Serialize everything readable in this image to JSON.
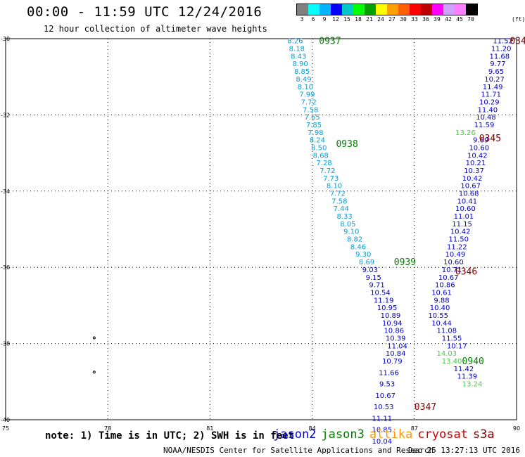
{
  "header": {
    "title": "00:00 - 11:59 UTC 12/24/2016",
    "subtitle": "12 hour collection of altimeter wave heights"
  },
  "colorbar": {
    "colors": [
      "#808080",
      "#00ffff",
      "#00b4ff",
      "#0000ff",
      "#00c8c8",
      "#00ff00",
      "#00a000",
      "#ffff00",
      "#ffa000",
      "#ff6000",
      "#ff0000",
      "#c00000",
      "#ff00ff",
      "#d0a0ff",
      "#ff80ff",
      "#000000"
    ],
    "labels": [
      "3",
      "6",
      "9",
      "12",
      "15",
      "18",
      "21",
      "24",
      "27",
      "30",
      "33",
      "36",
      "39",
      "42",
      "45",
      "70"
    ],
    "unit": "(ft)"
  },
  "axes": {
    "x_ticks": [
      "75",
      "78",
      "81",
      "84",
      "87",
      "90"
    ],
    "y_ticks": [
      "-30",
      "-32",
      "-34",
      "-36",
      "-38",
      "-40"
    ]
  },
  "satellites": [
    {
      "name": "jason2",
      "color": "#0000c8"
    },
    {
      "name": "jason3",
      "color": "#008000"
    },
    {
      "name": "altika",
      "color": "#ff9900"
    },
    {
      "name": "cryosat",
      "color": "#c80000"
    },
    {
      "name": "s3a",
      "color": "#800000"
    }
  ],
  "footer": {
    "note": "note: 1) Time is in UTC; 2) SWH is in feet",
    "credit": "NOAA/NESDIS Center for Satellite Applications and Research",
    "timestamp": "Dec 25 13:27:13 UTC 2016"
  },
  "time_labels": [
    {
      "text": "0937",
      "color": "#008000",
      "lon": 84.2,
      "lat": -30.05
    },
    {
      "text": "0938",
      "color": "#008000",
      "lon": 84.7,
      "lat": -32.75
    },
    {
      "text": "0939",
      "color": "#008000",
      "lon": 86.4,
      "lat": -35.85
    },
    {
      "text": "0940",
      "color": "#008000",
      "lon": 88.4,
      "lat": -38.45
    },
    {
      "text": "0345",
      "color": "#800000",
      "lon": 88.9,
      "lat": -32.6
    },
    {
      "text": "0346",
      "color": "#800000",
      "lon": 88.2,
      "lat": -36.1
    },
    {
      "text": "0347",
      "color": "#800000",
      "lon": 87.0,
      "lat": -39.65
    },
    {
      "text": "034",
      "color": "#800000",
      "lon": 89.8,
      "lat": -30.05
    }
  ],
  "tracks": [
    {
      "name": "jason2-track-a",
      "color": "#00a0d8",
      "points": [
        {
          "lon": 83.5,
          "lat": -30.05,
          "swh": "8.26"
        },
        {
          "lon": 83.55,
          "lat": -30.25,
          "swh": "8.18"
        },
        {
          "lon": 83.6,
          "lat": -30.45,
          "swh": "8.43"
        },
        {
          "lon": 83.65,
          "lat": -30.65,
          "swh": "8.90"
        },
        {
          "lon": 83.7,
          "lat": -30.85,
          "swh": "8.85"
        },
        {
          "lon": 83.75,
          "lat": -31.05,
          "swh": "8.49"
        },
        {
          "lon": 83.8,
          "lat": -31.25,
          "swh": "8.10"
        },
        {
          "lon": 83.85,
          "lat": -31.45,
          "swh": "7.99"
        },
        {
          "lon": 83.9,
          "lat": -31.65,
          "swh": "7.72"
        },
        {
          "lon": 83.95,
          "lat": -31.85,
          "swh": "7.58"
        },
        {
          "lon": 84.0,
          "lat": -32.05,
          "swh": "7.65"
        },
        {
          "lon": 84.05,
          "lat": -32.25,
          "swh": "7.85"
        },
        {
          "lon": 84.1,
          "lat": -32.45,
          "swh": "7.98"
        },
        {
          "lon": 84.15,
          "lat": -32.65,
          "swh": "8.24"
        },
        {
          "lon": 84.2,
          "lat": -32.85,
          "swh": "8.50"
        },
        {
          "lon": 84.25,
          "lat": -33.05,
          "swh": "8.68"
        },
        {
          "lon": 84.35,
          "lat": -33.25,
          "swh": "7.28"
        },
        {
          "lon": 84.45,
          "lat": -33.45,
          "swh": "7.72"
        },
        {
          "lon": 84.55,
          "lat": -33.65,
          "swh": "7.73"
        },
        {
          "lon": 84.65,
          "lat": -33.85,
          "swh": "8.10"
        },
        {
          "lon": 84.75,
          "lat": -34.05,
          "swh": "7.72"
        },
        {
          "lon": 84.8,
          "lat": -34.25,
          "swh": "7.58"
        },
        {
          "lon": 84.85,
          "lat": -34.45,
          "swh": "7.44"
        },
        {
          "lon": 84.95,
          "lat": -34.65,
          "swh": "8.33"
        },
        {
          "lon": 85.05,
          "lat": -34.85,
          "swh": "8.05"
        },
        {
          "lon": 85.15,
          "lat": -35.05,
          "swh": "9.10"
        },
        {
          "lon": 85.25,
          "lat": -35.25,
          "swh": "8.82"
        },
        {
          "lon": 85.35,
          "lat": -35.45,
          "swh": "8.46"
        },
        {
          "lon": 85.5,
          "lat": -35.65,
          "swh": "9.30"
        },
        {
          "lon": 85.6,
          "lat": -35.85,
          "swh": "8.69"
        }
      ]
    },
    {
      "name": "jason2-track-b",
      "color": "#0000c8",
      "points": [
        {
          "lon": 85.7,
          "lat": -36.05,
          "swh": "9.03"
        },
        {
          "lon": 85.8,
          "lat": -36.25,
          "swh": "9.15"
        },
        {
          "lon": 85.9,
          "lat": -36.45,
          "swh": "9.71"
        },
        {
          "lon": 86.0,
          "lat": -36.65,
          "swh": "10.54"
        },
        {
          "lon": 86.1,
          "lat": -36.85,
          "swh": "11.19"
        },
        {
          "lon": 86.2,
          "lat": -37.05,
          "swh": "10.95"
        },
        {
          "lon": 86.3,
          "lat": -37.25,
          "swh": "10.89"
        },
        {
          "lon": 86.35,
          "lat": -37.45,
          "swh": "10.94"
        },
        {
          "lon": 86.4,
          "lat": -37.65,
          "swh": "10.86"
        },
        {
          "lon": 86.45,
          "lat": -37.85,
          "swh": "10.39"
        },
        {
          "lon": 86.5,
          "lat": -38.05,
          "swh": "11.04"
        },
        {
          "lon": 86.45,
          "lat": -38.25,
          "swh": "10.84"
        },
        {
          "lon": 86.35,
          "lat": -38.45,
          "swh": "10.79"
        },
        {
          "lon": 86.25,
          "lat": -38.75,
          "swh": "11.66"
        },
        {
          "lon": 86.2,
          "lat": -39.05,
          "swh": "9.53"
        },
        {
          "lon": 86.15,
          "lat": -39.35,
          "swh": "10.67"
        },
        {
          "lon": 86.1,
          "lat": -39.65,
          "swh": "10.53"
        },
        {
          "lon": 86.05,
          "lat": -39.95,
          "swh": "11.11"
        },
        {
          "lon": 86.05,
          "lat": -40.25,
          "swh": "10.85"
        },
        {
          "lon": 86.05,
          "lat": -40.55,
          "swh": "10.04"
        }
      ]
    },
    {
      "name": "jason2-track-c",
      "color": "#0000c8",
      "points": [
        {
          "lon": 89.6,
          "lat": -30.05,
          "swh": "11.52"
        },
        {
          "lon": 89.55,
          "lat": -30.25,
          "swh": "11.20"
        },
        {
          "lon": 89.5,
          "lat": -30.45,
          "swh": "11.68"
        },
        {
          "lon": 89.45,
          "lat": -30.65,
          "swh": "9.77"
        },
        {
          "lon": 89.4,
          "lat": -30.85,
          "swh": "9.65"
        },
        {
          "lon": 89.35,
          "lat": -31.05,
          "swh": "10.27"
        },
        {
          "lon": 89.3,
          "lat": -31.25,
          "swh": "11.49"
        },
        {
          "lon": 89.25,
          "lat": -31.45,
          "swh": "11.71"
        },
        {
          "lon": 89.2,
          "lat": -31.65,
          "swh": "10.29"
        },
        {
          "lon": 89.15,
          "lat": -31.85,
          "swh": "11.40"
        },
        {
          "lon": 89.1,
          "lat": -32.05,
          "swh": "10.48"
        },
        {
          "lon": 89.05,
          "lat": -32.25,
          "swh": "11.59"
        },
        {
          "lon": 88.95,
          "lat": -32.65,
          "swh": "9.69"
        },
        {
          "lon": 88.9,
          "lat": -32.85,
          "swh": "10.60"
        },
        {
          "lon": 88.85,
          "lat": -33.05,
          "swh": "10.42"
        },
        {
          "lon": 88.8,
          "lat": -33.25,
          "swh": "10.21"
        },
        {
          "lon": 88.75,
          "lat": -33.45,
          "swh": "10.37"
        },
        {
          "lon": 88.7,
          "lat": -33.65,
          "swh": "10.42"
        },
        {
          "lon": 88.65,
          "lat": -33.85,
          "swh": "10.67"
        },
        {
          "lon": 88.6,
          "lat": -34.05,
          "swh": "10.68"
        },
        {
          "lon": 88.55,
          "lat": -34.25,
          "swh": "10.41"
        },
        {
          "lon": 88.5,
          "lat": -34.45,
          "swh": "10.60"
        },
        {
          "lon": 88.45,
          "lat": -34.65,
          "swh": "11.01"
        },
        {
          "lon": 88.4,
          "lat": -34.85,
          "swh": "11.15"
        },
        {
          "lon": 88.35,
          "lat": -35.05,
          "swh": "10.42"
        },
        {
          "lon": 88.3,
          "lat": -35.25,
          "swh": "11.50"
        },
        {
          "lon": 88.25,
          "lat": -35.45,
          "swh": "11.22"
        },
        {
          "lon": 88.2,
          "lat": -35.65,
          "swh": "10.49"
        },
        {
          "lon": 88.15,
          "lat": -35.85,
          "swh": "10.60"
        },
        {
          "lon": 88.1,
          "lat": -36.05,
          "swh": "10.71"
        },
        {
          "lon": 88.0,
          "lat": -36.25,
          "swh": "10.67"
        },
        {
          "lon": 87.9,
          "lat": -36.45,
          "swh": "10.86"
        },
        {
          "lon": 87.8,
          "lat": -36.65,
          "swh": "10.61"
        },
        {
          "lon": 87.8,
          "lat": -36.85,
          "swh": "9.88"
        },
        {
          "lon": 87.75,
          "lat": -37.05,
          "swh": "10.40"
        },
        {
          "lon": 87.7,
          "lat": -37.25,
          "swh": "10.55"
        },
        {
          "lon": 87.8,
          "lat": -37.45,
          "swh": "10.44"
        },
        {
          "lon": 87.95,
          "lat": -37.65,
          "swh": "11.08"
        },
        {
          "lon": 88.1,
          "lat": -37.85,
          "swh": "11.55"
        },
        {
          "lon": 88.25,
          "lat": -38.05,
          "swh": "10.17"
        },
        {
          "lon": 88.45,
          "lat": -38.65,
          "swh": "11.42"
        },
        {
          "lon": 88.55,
          "lat": -38.85,
          "swh": "11.39"
        }
      ]
    },
    {
      "name": "altika-track",
      "color": "#40d040",
      "points": [
        {
          "lon": 88.5,
          "lat": -32.45,
          "swh": "13.26"
        },
        {
          "lon": 87.95,
          "lat": -38.25,
          "swh": "14.03"
        },
        {
          "lon": 88.1,
          "lat": -38.45,
          "swh": "13.40"
        },
        {
          "lon": 88.7,
          "lat": -39.05,
          "swh": "13.24"
        }
      ]
    }
  ],
  "markers": [
    {
      "name": "small-island-1",
      "lon": 77.6,
      "lat": -37.85
    },
    {
      "name": "small-island-2",
      "lon": 77.6,
      "lat": -38.75
    }
  ]
}
